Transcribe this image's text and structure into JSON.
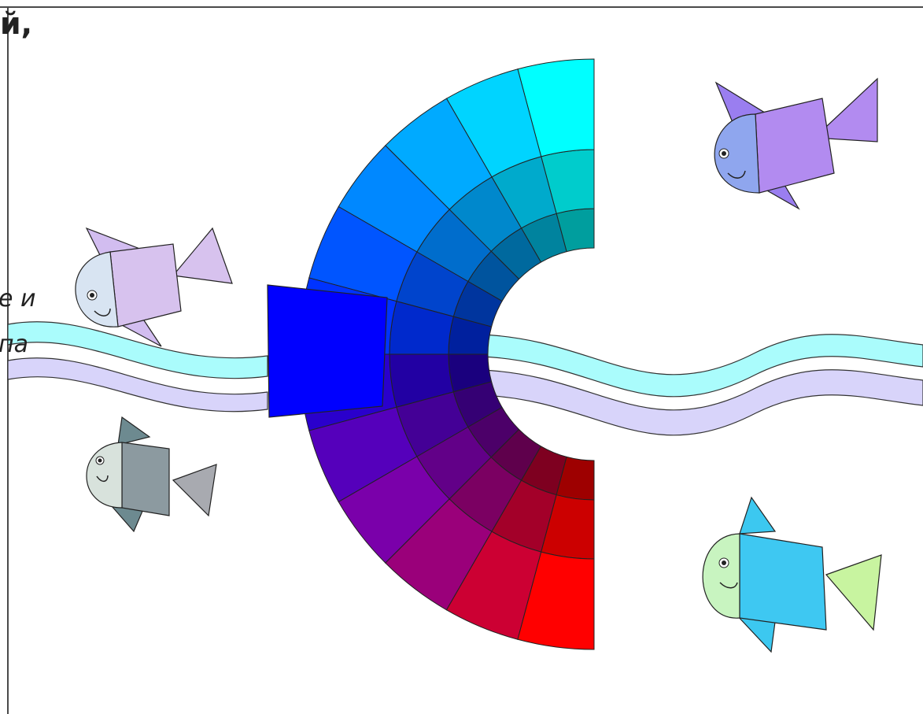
{
  "text_fragments": {
    "top": "й,",
    "middle1": "е и",
    "middle2": "па"
  },
  "color_wheel": {
    "rings": 4,
    "sectors": 12,
    "center_segment_color": "#0000ff",
    "palette_outer": [
      "#00ffff",
      "#00d4ff",
      "#00aaff",
      "#0088ff",
      "#0055ff",
      "#0033ff",
      "#2a00cc",
      "#5500bb",
      "#7a00aa",
      "#9a007a",
      "#cc0033",
      "#ff0000"
    ]
  },
  "fish": [
    {
      "name": "purple-fish",
      "body": "#b28bf0",
      "head": "#8fa6ee",
      "fin": "#9a7ef0"
    },
    {
      "name": "lavender-fish",
      "body": "#d7c2ee",
      "head": "#d8e4f2",
      "fin": "#d2bdf0"
    },
    {
      "name": "gray-fish",
      "body": "#8c9aa0",
      "head": "#d8e2dc",
      "fin": "#6d8a90"
    },
    {
      "name": "blue-fish",
      "body": "#3ec8f2",
      "head": "#c8f4c0",
      "fin": "#3cc8f0"
    }
  ],
  "wave_colors": {
    "band_top": "#aafcfc",
    "band_bottom": "#d8d4fa"
  }
}
